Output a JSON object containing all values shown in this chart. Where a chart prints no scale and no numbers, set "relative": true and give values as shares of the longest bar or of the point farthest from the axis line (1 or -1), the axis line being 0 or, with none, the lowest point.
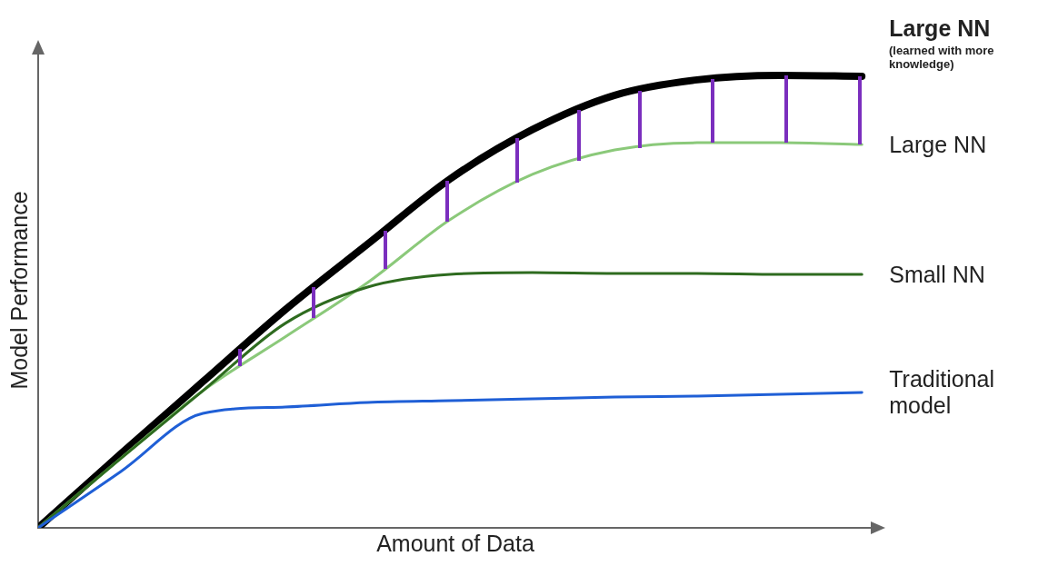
{
  "chart_data": {
    "type": "line",
    "relative": true,
    "xlabel": "Amount of Data",
    "ylabel": "Model Performance",
    "categories": [
      null,
      null,
      null,
      null,
      null,
      null,
      null,
      null,
      null,
      null,
      null
    ],
    "series": [
      {
        "name": "Traditional model",
        "color": "#1f5fd6",
        "values": [
          0,
          0.124,
          0.253,
          0.267,
          0.277,
          0.281,
          0.285,
          0.289,
          0.291,
          0.295,
          0.299
        ]
      },
      {
        "name": "Small NN",
        "color": "#2e6b1f",
        "values": [
          0,
          0.153,
          0.303,
          0.452,
          0.532,
          0.56,
          0.564,
          0.562,
          0.562,
          0.56,
          0.56
        ]
      },
      {
        "name": "Large NN",
        "color": "#8bc97a",
        "values": [
          0,
          0.153,
          0.303,
          0.422,
          0.542,
          0.681,
          0.781,
          0.835,
          0.851,
          0.851,
          0.847
        ]
      },
      {
        "name": "Large NN",
        "color": "#000000",
        "values": [
          0,
          0.163,
          0.323,
          0.482,
          0.627,
          0.771,
          0.88,
          0.956,
          0.99,
          1.0,
          0.998
        ]
      }
    ],
    "annotations": [
      "(learned with more knowledge)"
    ],
    "grid": false,
    "legend": false,
    "marker": "none",
    "line_style": "solid"
  }
}
